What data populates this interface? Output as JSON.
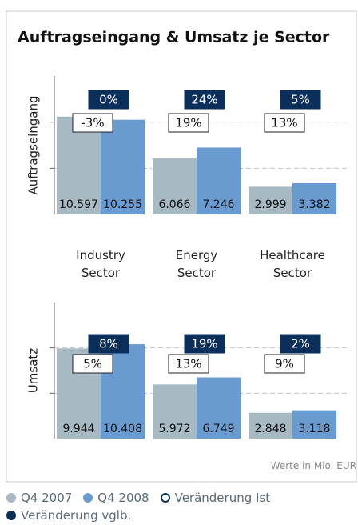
{
  "title": "Auftragseingang & Umsatz je Sector",
  "note": "Werte in Mio. EUR",
  "chart_data": [
    {
      "type": "bar",
      "ylabel": "Auftragseingang",
      "categories": [
        "Industry Sector",
        "Energy Sector",
        "Healthcare Sector"
      ],
      "ylim": [
        0,
        15000
      ],
      "yticks": [
        5000,
        10000
      ],
      "grid": true,
      "series": [
        {
          "name": "Q4 2007",
          "color": "#a7b9c3",
          "values": [
            10597,
            6066,
            2999
          ],
          "value_labels": [
            "10.597",
            "6.066",
            "2.999"
          ]
        },
        {
          "name": "Q4 2008",
          "color": "#6a9bd0",
          "values": [
            10255,
            7246,
            3382
          ],
          "value_labels": [
            "10.255",
            "7.246",
            "3.382"
          ]
        }
      ],
      "changes": [
        {
          "name": "Veränderung Ist",
          "color": "#ffffff",
          "values": [
            -3,
            19,
            13
          ],
          "value_labels": [
            "-3%",
            "19%",
            "13%"
          ]
        },
        {
          "name": "Veränderung vglb.",
          "color": "#0b2f5b",
          "values": [
            0,
            24,
            5
          ],
          "value_labels": [
            "0%",
            "24%",
            "5%"
          ]
        }
      ]
    },
    {
      "type": "bar",
      "ylabel": "Umsatz",
      "ylim": [
        0,
        15000
      ],
      "yticks": [
        5000,
        10000
      ],
      "grid": true,
      "series": [
        {
          "color": "#a7b9c3",
          "values": [
            9944,
            5972,
            2848
          ],
          "value_labels": [
            "9.944",
            "5.972",
            "2.848"
          ]
        },
        {
          "color": "#6a9bd0",
          "values": [
            10408,
            6749,
            3118
          ],
          "value_labels": [
            "10.408",
            "6.749",
            "3.118"
          ]
        }
      ],
      "changes": [
        {
          "color": "#ffffff",
          "values": [
            5,
            13,
            9
          ],
          "value_labels": [
            "5%",
            "13%",
            "9%"
          ]
        },
        {
          "color": "#0b2f5b",
          "values": [
            8,
            19,
            2
          ],
          "value_labels": [
            "8%",
            "19%",
            "2%"
          ]
        }
      ]
    }
  ]
}
